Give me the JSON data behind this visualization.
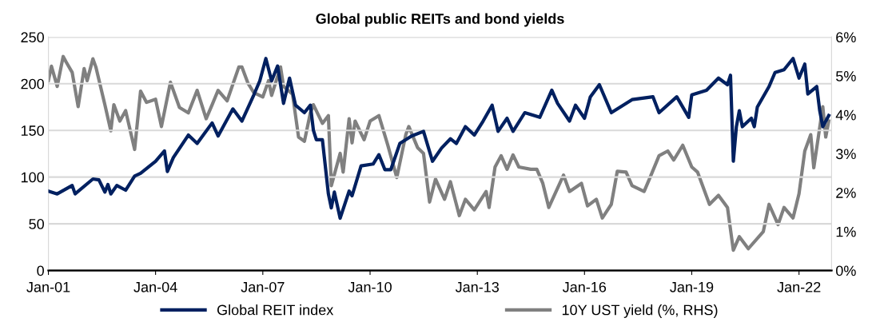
{
  "chart_data": {
    "type": "line",
    "title": "Global public REITs and bond yields",
    "xlim": [
      "2001-01-01",
      "2022-11-30"
    ],
    "xticks": [
      {
        "value": "2001-01-01",
        "label": "Jan-01"
      },
      {
        "value": "2004-01-01",
        "label": "Jan-04"
      },
      {
        "value": "2007-01-01",
        "label": "Jan-07"
      },
      {
        "value": "2010-01-01",
        "label": "Jan-10"
      },
      {
        "value": "2013-01-01",
        "label": "Jan-13"
      },
      {
        "value": "2016-01-01",
        "label": "Jan-16"
      },
      {
        "value": "2019-01-01",
        "label": "Jan-19"
      },
      {
        "value": "2022-01-01",
        "label": "Jan-22"
      }
    ],
    "ylim": [
      0,
      250
    ],
    "yticks": [
      0,
      50,
      100,
      150,
      200,
      250
    ],
    "y2lim": [
      0,
      6
    ],
    "y2ticks": [
      {
        "value": 0,
        "label": "0%"
      },
      {
        "value": 1,
        "label": "1%"
      },
      {
        "value": 2,
        "label": "2%"
      },
      {
        "value": 3,
        "label": "3%"
      },
      {
        "value": 4,
        "label": "4%"
      },
      {
        "value": 5,
        "label": "5%"
      },
      {
        "value": 6,
        "label": "6%"
      }
    ],
    "grid": "y",
    "legend": "bottom",
    "line_style": "solid",
    "marker": "none",
    "series": [
      {
        "name": "Global REIT index",
        "color": "#002060",
        "x": [
          "2001-01",
          "2001-04",
          "2001-09",
          "2001-10",
          "2002-04",
          "2002-06",
          "2002-08",
          "2002-09",
          "2002-10",
          "2002-12",
          "2003-03",
          "2003-06",
          "2003-08",
          "2004-01",
          "2004-04",
          "2004-05",
          "2004-07",
          "2004-12",
          "2005-03",
          "2005-08",
          "2005-10",
          "2006-03",
          "2006-06",
          "2006-10",
          "2006-12",
          "2007-02",
          "2007-04",
          "2007-06",
          "2007-08",
          "2007-10",
          "2007-12",
          "2008-03",
          "2008-05",
          "2008-06",
          "2008-07",
          "2008-09",
          "2008-11",
          "2008-12",
          "2009-01",
          "2009-03",
          "2009-06",
          "2009-07",
          "2009-10",
          "2010-02",
          "2010-04",
          "2010-06",
          "2010-08",
          "2010-11",
          "2011-03",
          "2011-07",
          "2011-10",
          "2012-01",
          "2012-04",
          "2012-06",
          "2012-09",
          "2012-12",
          "2013-03",
          "2013-06",
          "2013-08",
          "2013-11",
          "2014-01",
          "2014-05",
          "2014-10",
          "2015-02",
          "2015-04",
          "2015-08",
          "2015-10",
          "2016-01",
          "2016-03",
          "2016-06",
          "2016-10",
          "2017-05",
          "2017-12",
          "2018-02",
          "2018-08",
          "2018-12",
          "2019-01",
          "2019-06",
          "2019-10",
          "2020-01",
          "2020-02",
          "2020-03",
          "2020-04",
          "2020-05",
          "2020-06",
          "2020-09",
          "2020-10",
          "2020-11",
          "2021-03",
          "2021-05",
          "2021-08",
          "2021-11",
          "2022-01",
          "2022-03",
          "2022-04",
          "2022-07",
          "2022-08",
          "2022-09",
          "2022-11"
        ],
        "values": [
          85,
          82,
          91,
          82,
          98,
          97,
          84,
          92,
          82,
          91,
          86,
          101,
          104,
          117,
          128,
          106,
          121,
          145,
          136,
          158,
          144,
          173,
          160,
          188,
          203,
          227,
          203,
          219,
          179,
          206,
          177,
          169,
          177,
          150,
          140,
          140,
          82,
          67,
          84,
          56,
          85,
          80,
          112,
          114,
          124,
          108,
          108,
          136,
          144,
          149,
          117,
          131,
          141,
          136,
          154,
          145,
          160,
          177,
          149,
          163,
          149,
          169,
          164,
          193,
          179,
          160,
          177,
          163,
          186,
          199,
          169,
          183,
          186,
          169,
          186,
          164,
          188,
          193,
          206,
          199,
          209,
          117,
          154,
          171,
          154,
          163,
          154,
          175,
          197,
          212,
          215,
          227,
          206,
          221,
          189,
          197,
          171,
          154,
          166
        ]
      },
      {
        "name": "10Y UST yield (%, RHS)",
        "color": "#808080",
        "axis": "y2",
        "x": [
          "2001-01",
          "2001-02",
          "2001-04",
          "2001-06",
          "2001-07",
          "2001-09",
          "2001-11",
          "2002-01",
          "2002-02",
          "2002-04",
          "2002-05",
          "2002-08",
          "2002-10",
          "2002-11",
          "2003-01",
          "2003-03",
          "2003-06",
          "2003-08",
          "2003-10",
          "2004-01",
          "2004-03",
          "2004-06",
          "2004-09",
          "2004-12",
          "2005-03",
          "2005-06",
          "2005-08",
          "2005-10",
          "2006-01",
          "2006-05",
          "2006-06",
          "2006-08",
          "2006-10",
          "2007-01",
          "2007-03",
          "2007-04",
          "2007-07",
          "2007-08",
          "2007-11",
          "2008-01",
          "2008-03",
          "2008-05",
          "2008-06",
          "2008-09",
          "2008-11",
          "2008-12",
          "2009-03",
          "2009-04",
          "2009-06",
          "2009-07",
          "2009-08",
          "2009-11",
          "2010-01",
          "2010-04",
          "2010-07",
          "2010-10",
          "2011-01",
          "2011-02",
          "2011-05",
          "2011-07",
          "2011-09",
          "2011-11",
          "2012-02",
          "2012-04",
          "2012-07",
          "2012-09",
          "2012-12",
          "2013-04",
          "2013-05",
          "2013-07",
          "2013-09",
          "2013-11",
          "2014-01",
          "2014-03",
          "2014-07",
          "2014-09",
          "2014-11",
          "2015-01",
          "2015-06",
          "2015-08",
          "2015-12",
          "2016-02",
          "2016-05",
          "2016-07",
          "2016-10",
          "2016-12",
          "2017-03",
          "2017-05",
          "2017-09",
          "2017-11",
          "2018-02",
          "2018-05",
          "2018-07",
          "2018-10",
          "2019-01",
          "2019-03",
          "2019-07",
          "2019-10",
          "2020-01",
          "2020-03",
          "2020-05",
          "2020-08",
          "2021-01",
          "2021-03",
          "2021-06",
          "2021-08",
          "2021-11",
          "2022-01",
          "2022-03",
          "2022-05",
          "2022-06",
          "2022-09",
          "2022-10",
          "2022-11"
        ],
        "values": [
          4.88,
          5.25,
          4.73,
          5.5,
          5.36,
          5.09,
          4.21,
          5.19,
          4.88,
          5.44,
          5.23,
          4.26,
          3.59,
          4.26,
          3.84,
          4.11,
          3.11,
          4.61,
          4.32,
          4.4,
          3.7,
          4.84,
          4.19,
          4.05,
          4.63,
          3.9,
          4.26,
          4.63,
          4.36,
          5.23,
          5.23,
          4.82,
          4.57,
          4.46,
          4.88,
          4.5,
          5.23,
          4.73,
          4.53,
          3.43,
          3.32,
          4.05,
          4.26,
          3.78,
          3.98,
          2.18,
          3.01,
          2.53,
          3.9,
          3.28,
          3.84,
          3.36,
          3.84,
          3.98,
          3.22,
          2.39,
          3.49,
          3.7,
          3.16,
          3.01,
          1.76,
          2.35,
          1.83,
          2.28,
          1.41,
          1.83,
          1.56,
          2.03,
          1.62,
          2.66,
          2.95,
          2.6,
          2.97,
          2.66,
          2.6,
          2.6,
          2.24,
          1.62,
          2.45,
          2.03,
          2.24,
          1.66,
          1.83,
          1.35,
          1.7,
          2.55,
          2.53,
          2.18,
          2.03,
          2.39,
          2.95,
          3.07,
          2.84,
          3.22,
          2.66,
          2.53,
          1.7,
          1.93,
          1.62,
          0.52,
          0.87,
          0.56,
          1.0,
          1.7,
          1.18,
          1.62,
          1.35,
          1.97,
          3.07,
          3.49,
          2.64,
          4.21,
          3.43,
          3.84
        ]
      }
    ]
  }
}
